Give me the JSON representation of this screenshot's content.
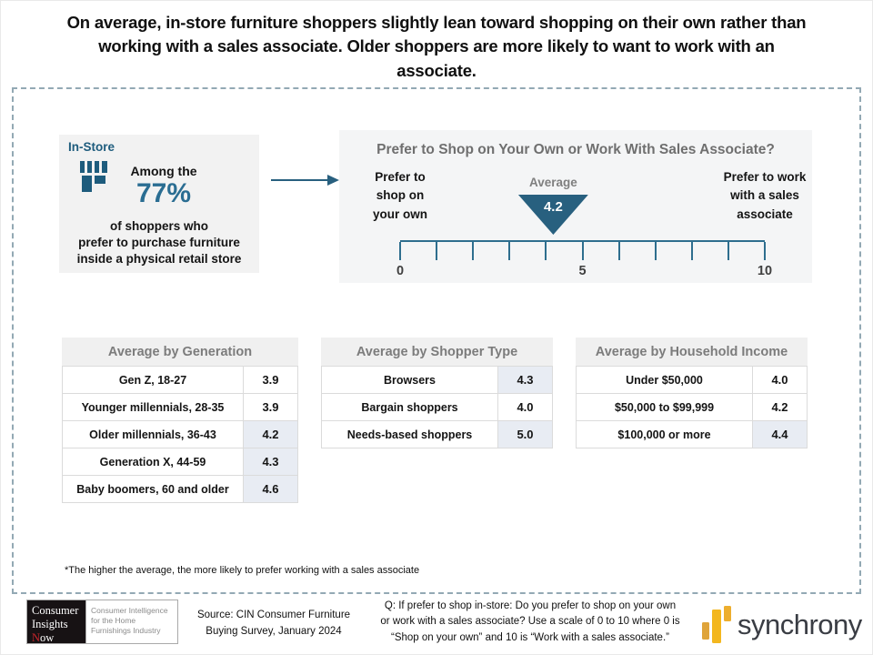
{
  "title": "On average, in-store furniture shoppers slightly lean toward shopping on their own rather than\nworking with a sales associate. Older shoppers are more likely to want to work with an\nassociate.",
  "instore": {
    "label": "In-Store",
    "among": "Among the",
    "pct": "77%",
    "body": "of shoppers who\nprefer to purchase furniture\ninside a physical retail store"
  },
  "scale": {
    "title": "Prefer to Shop on Your Own or Work With Sales Associate?",
    "left_label": "Prefer to\nshop on\nyour own",
    "right_label": "Prefer to work\nwith a sales\nassociate",
    "average_label": "Average",
    "average": 4.2,
    "average_display": "4.2",
    "min": 0,
    "max": 10,
    "tick_step": 1,
    "shown_tick_labels": [
      {
        "value": 0,
        "label": "0"
      },
      {
        "value": 5,
        "label": "5"
      },
      {
        "value": 10,
        "label": "10"
      }
    ]
  },
  "tables": [
    {
      "title": "Average by Generation",
      "rows": [
        {
          "label": "Gen Z, 18-27",
          "value": "3.9",
          "highlight": false
        },
        {
          "label": "Younger millennials, 28-35",
          "value": "3.9",
          "highlight": false
        },
        {
          "label": "Older millennials, 36-43",
          "value": "4.2",
          "highlight": true
        },
        {
          "label": "Generation X, 44-59",
          "value": "4.3",
          "highlight": true
        },
        {
          "label": "Baby boomers, 60 and older",
          "value": "4.6",
          "highlight": true
        }
      ]
    },
    {
      "title": "Average by Shopper Type",
      "rows": [
        {
          "label": "Browsers",
          "value": "4.3",
          "highlight": true
        },
        {
          "label": "Bargain shoppers",
          "value": "4.0",
          "highlight": false
        },
        {
          "label": "Needs-based shoppers",
          "value": "5.0",
          "highlight": true
        }
      ]
    },
    {
      "title": "Average by Household Income",
      "rows": [
        {
          "label": "Under $50,000",
          "value": "4.0",
          "highlight": false
        },
        {
          "label": "$50,000 to $99,999",
          "value": "4.2",
          "highlight": false
        },
        {
          "label": "$100,000 or more",
          "value": "4.4",
          "highlight": true
        }
      ]
    }
  ],
  "footnote": "*The higher the average, the more likely to prefer working with a sales associate",
  "footer": {
    "logo_line1": "Consumer",
    "logo_line2": "Insights",
    "logo_line3_initial": "N",
    "logo_line3_rest": "ow",
    "logo_tagline": "Consumer Intelligence\nfor the Home\nFurnishings Industry",
    "source": "Source: CIN Consumer Furniture\nBuying Survey, January 2024",
    "question": "Q: If prefer to shop in-store: Do you prefer to shop on your own\nor work with a sales associate? Use a scale of 0 to 10 where 0 is\n“Shop on your own” and 10 is “Work with a sales associate.”",
    "brand": "synchrony"
  },
  "colors": {
    "teal_dark": "#28607F",
    "teal_text": "#2A6D92",
    "axis": "#2E6E8E",
    "gray_heading": "#6F6F6F",
    "panel_bg": "#F2F2F2",
    "scale_panel_bg": "#F4F5F6",
    "table_header_bg": "#F0F0F0",
    "highlight_cell_bg": "#E8ECF3",
    "dashed_border": "#93A9B4",
    "logo_red": "#C9252C",
    "synchrony_gold": "#F3B71F",
    "synchrony_text": "#3A3D44"
  },
  "chart_data": [
    {
      "type": "scatter",
      "title": "Prefer to Shop on Your Own or Work With Sales Associate?",
      "series": [
        {
          "name": "Average",
          "x": [
            4.2
          ]
        }
      ],
      "xlim": [
        0,
        10
      ],
      "x_ticks": [
        0,
        1,
        2,
        3,
        4,
        5,
        6,
        7,
        8,
        9,
        10
      ],
      "x_tick_labels_shown": [
        "0",
        "5",
        "10"
      ],
      "annotations": [
        "Prefer to shop on your own (0 end)",
        "Prefer to work with a sales associate (10 end)",
        "Among the 77% of shoppers who prefer to purchase furniture inside a physical retail store"
      ]
    },
    {
      "type": "table",
      "title": "Average by Generation",
      "categories": [
        "Gen Z, 18-27",
        "Younger millennials, 28-35",
        "Older millennials, 36-43",
        "Generation X, 44-59",
        "Baby boomers, 60 and older"
      ],
      "values": [
        3.9,
        3.9,
        4.2,
        4.3,
        4.6
      ]
    },
    {
      "type": "table",
      "title": "Average by Shopper Type",
      "categories": [
        "Browsers",
        "Bargain shoppers",
        "Needs-based shoppers"
      ],
      "values": [
        4.3,
        4.0,
        5.0
      ]
    },
    {
      "type": "table",
      "title": "Average by Household Income",
      "categories": [
        "Under $50,000",
        "$50,000 to $99,999",
        "$100,000 or more"
      ],
      "values": [
        4.0,
        4.2,
        4.4
      ]
    }
  ]
}
